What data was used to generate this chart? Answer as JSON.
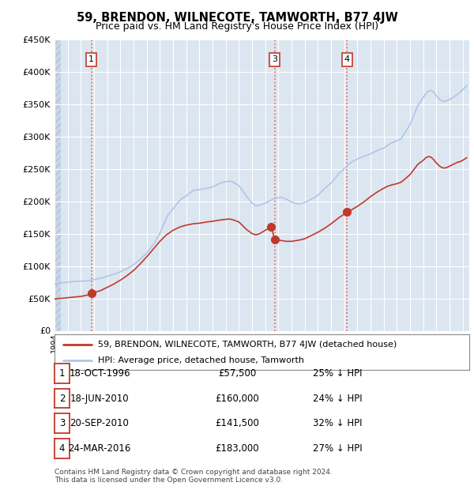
{
  "title": "59, BRENDON, WILNECOTE, TAMWORTH, B77 4JW",
  "subtitle": "Price paid vs. HM Land Registry's House Price Index (HPI)",
  "ylim": [
    0,
    450000
  ],
  "yticks": [
    0,
    50000,
    100000,
    150000,
    200000,
    250000,
    300000,
    350000,
    400000,
    450000
  ],
  "ytick_labels": [
    "£0",
    "£50K",
    "£100K",
    "£150K",
    "£200K",
    "£250K",
    "£300K",
    "£350K",
    "£400K",
    "£450K"
  ],
  "xlim_start": 1994.0,
  "xlim_end": 2025.5,
  "background_color": "#ffffff",
  "plot_bg_color": "#dce6f1",
  "hatch_color": "#c8d8ea",
  "grid_color": "#ffffff",
  "hpi_line_color": "#aec6e8",
  "property_line_color": "#c0392b",
  "sale_dot_color": "#c0392b",
  "sale_marker_size": 7,
  "vline_color": "#e86060",
  "legend_label_property": "59, BRENDON, WILNECOTE, TAMWORTH, B77 4JW (detached house)",
  "legend_label_hpi": "HPI: Average price, detached house, Tamworth",
  "sales": [
    {
      "label": "1",
      "date_num": 1996.79,
      "price": 57500,
      "show_vline": true,
      "show_box": true
    },
    {
      "label": "2",
      "date_num": 2010.46,
      "price": 160000,
      "show_vline": false,
      "show_box": false
    },
    {
      "label": "3",
      "date_num": 2010.72,
      "price": 141500,
      "show_vline": true,
      "show_box": true
    },
    {
      "label": "4",
      "date_num": 2016.22,
      "price": 183000,
      "show_vline": true,
      "show_box": true
    }
  ],
  "hpi_points": [
    [
      1994.0,
      72000
    ],
    [
      1994.5,
      74000
    ],
    [
      1995.0,
      75000
    ],
    [
      1995.5,
      76000
    ],
    [
      1996.0,
      76500
    ],
    [
      1996.5,
      77000
    ],
    [
      1997.0,
      79000
    ],
    [
      1997.5,
      81000
    ],
    [
      1998.0,
      84000
    ],
    [
      1998.5,
      87000
    ],
    [
      1999.0,
      91000
    ],
    [
      1999.5,
      96000
    ],
    [
      2000.0,
      102000
    ],
    [
      2000.5,
      110000
    ],
    [
      2001.0,
      120000
    ],
    [
      2001.5,
      133000
    ],
    [
      2002.0,
      150000
    ],
    [
      2002.3,
      165000
    ],
    [
      2002.6,
      178000
    ],
    [
      2003.0,
      188000
    ],
    [
      2003.3,
      196000
    ],
    [
      2003.6,
      203000
    ],
    [
      2004.0,
      208000
    ],
    [
      2004.3,
      213000
    ],
    [
      2004.6,
      217000
    ],
    [
      2005.0,
      218000
    ],
    [
      2005.3,
      219000
    ],
    [
      2005.6,
      220000
    ],
    [
      2006.0,
      222000
    ],
    [
      2006.3,
      225000
    ],
    [
      2006.6,
      228000
    ],
    [
      2007.0,
      230000
    ],
    [
      2007.3,
      231000
    ],
    [
      2007.6,
      229000
    ],
    [
      2008.0,
      224000
    ],
    [
      2008.3,
      216000
    ],
    [
      2008.6,
      207000
    ],
    [
      2009.0,
      197000
    ],
    [
      2009.3,
      193000
    ],
    [
      2009.6,
      194000
    ],
    [
      2010.0,
      197000
    ],
    [
      2010.3,
      200000
    ],
    [
      2010.6,
      203000
    ],
    [
      2010.9,
      205000
    ],
    [
      2011.2,
      206000
    ],
    [
      2011.5,
      204000
    ],
    [
      2011.8,
      201000
    ],
    [
      2012.1,
      198000
    ],
    [
      2012.4,
      196000
    ],
    [
      2012.7,
      196000
    ],
    [
      2013.0,
      198000
    ],
    [
      2013.3,
      201000
    ],
    [
      2013.6,
      204000
    ],
    [
      2014.0,
      209000
    ],
    [
      2014.3,
      215000
    ],
    [
      2014.6,
      221000
    ],
    [
      2015.0,
      228000
    ],
    [
      2015.3,
      235000
    ],
    [
      2015.6,
      243000
    ],
    [
      2016.0,
      250000
    ],
    [
      2016.3,
      256000
    ],
    [
      2016.6,
      261000
    ],
    [
      2017.0,
      265000
    ],
    [
      2017.3,
      268000
    ],
    [
      2017.6,
      270000
    ],
    [
      2018.0,
      273000
    ],
    [
      2018.3,
      276000
    ],
    [
      2018.6,
      279000
    ],
    [
      2019.0,
      282000
    ],
    [
      2019.3,
      286000
    ],
    [
      2019.6,
      290000
    ],
    [
      2020.0,
      293000
    ],
    [
      2020.3,
      296000
    ],
    [
      2020.6,
      305000
    ],
    [
      2021.0,
      318000
    ],
    [
      2021.3,
      333000
    ],
    [
      2021.6,
      348000
    ],
    [
      2022.0,
      360000
    ],
    [
      2022.2,
      366000
    ],
    [
      2022.4,
      370000
    ],
    [
      2022.6,
      371000
    ],
    [
      2022.8,
      368000
    ],
    [
      2023.0,
      363000
    ],
    [
      2023.2,
      358000
    ],
    [
      2023.4,
      355000
    ],
    [
      2023.6,
      354000
    ],
    [
      2023.8,
      355000
    ],
    [
      2024.0,
      357000
    ],
    [
      2024.2,
      359000
    ],
    [
      2024.4,
      362000
    ],
    [
      2024.6,
      365000
    ],
    [
      2024.8,
      368000
    ],
    [
      2025.0,
      372000
    ],
    [
      2025.3,
      378000
    ]
  ],
  "prop_points": [
    [
      1994.0,
      49000
    ],
    [
      1994.5,
      50000
    ],
    [
      1995.0,
      51000
    ],
    [
      1995.5,
      52000
    ],
    [
      1996.0,
      53000
    ],
    [
      1996.5,
      55000
    ],
    [
      1996.79,
      57500
    ],
    [
      1997.0,
      59000
    ],
    [
      1997.5,
      62000
    ],
    [
      1998.0,
      67000
    ],
    [
      1998.5,
      72000
    ],
    [
      1999.0,
      78000
    ],
    [
      1999.5,
      85000
    ],
    [
      2000.0,
      93000
    ],
    [
      2000.5,
      103000
    ],
    [
      2001.0,
      114000
    ],
    [
      2001.5,
      126000
    ],
    [
      2002.0,
      138000
    ],
    [
      2002.5,
      148000
    ],
    [
      2003.0,
      155000
    ],
    [
      2003.5,
      160000
    ],
    [
      2004.0,
      163000
    ],
    [
      2004.5,
      165000
    ],
    [
      2005.0,
      166000
    ],
    [
      2005.3,
      167000
    ],
    [
      2005.6,
      168000
    ],
    [
      2006.0,
      169000
    ],
    [
      2006.3,
      170000
    ],
    [
      2006.6,
      171000
    ],
    [
      2007.0,
      172000
    ],
    [
      2007.3,
      172500
    ],
    [
      2007.6,
      171000
    ],
    [
      2008.0,
      168000
    ],
    [
      2008.3,
      162000
    ],
    [
      2008.6,
      156000
    ],
    [
      2009.0,
      150000
    ],
    [
      2009.3,
      148000
    ],
    [
      2009.6,
      150000
    ],
    [
      2010.0,
      155000
    ],
    [
      2010.46,
      160000
    ],
    [
      2010.72,
      141500
    ],
    [
      2011.0,
      140000
    ],
    [
      2011.3,
      139000
    ],
    [
      2011.6,
      138000
    ],
    [
      2012.0,
      138000
    ],
    [
      2012.3,
      139000
    ],
    [
      2012.6,
      140000
    ],
    [
      2013.0,
      142000
    ],
    [
      2013.3,
      145000
    ],
    [
      2013.6,
      148000
    ],
    [
      2014.0,
      152000
    ],
    [
      2014.5,
      158000
    ],
    [
      2015.0,
      165000
    ],
    [
      2015.5,
      173000
    ],
    [
      2016.0,
      180000
    ],
    [
      2016.22,
      183000
    ],
    [
      2016.5,
      186000
    ],
    [
      2017.0,
      192000
    ],
    [
      2017.5,
      199000
    ],
    [
      2018.0,
      207000
    ],
    [
      2018.5,
      214000
    ],
    [
      2019.0,
      220000
    ],
    [
      2019.3,
      223000
    ],
    [
      2019.6,
      225000
    ],
    [
      2020.0,
      227000
    ],
    [
      2020.3,
      229000
    ],
    [
      2020.6,
      234000
    ],
    [
      2021.0,
      241000
    ],
    [
      2021.3,
      249000
    ],
    [
      2021.6,
      257000
    ],
    [
      2022.0,
      263000
    ],
    [
      2022.2,
      267000
    ],
    [
      2022.4,
      269000
    ],
    [
      2022.6,
      268000
    ],
    [
      2022.8,
      264000
    ],
    [
      2023.0,
      259000
    ],
    [
      2023.2,
      255000
    ],
    [
      2023.4,
      252000
    ],
    [
      2023.6,
      251000
    ],
    [
      2023.8,
      252000
    ],
    [
      2024.0,
      254000
    ],
    [
      2024.2,
      256000
    ],
    [
      2024.4,
      258000
    ],
    [
      2024.6,
      260000
    ],
    [
      2024.8,
      261000
    ],
    [
      2025.0,
      263000
    ],
    [
      2025.3,
      267000
    ]
  ],
  "table_rows": [
    {
      "num": "1",
      "date": "18-OCT-1996",
      "price": "£57,500",
      "hpi_diff": "25% ↓ HPI"
    },
    {
      "num": "2",
      "date": "18-JUN-2010",
      "price": "£160,000",
      "hpi_diff": "24% ↓ HPI"
    },
    {
      "num": "3",
      "date": "20-SEP-2010",
      "price": "£141,500",
      "hpi_diff": "32% ↓ HPI"
    },
    {
      "num": "4",
      "date": "24-MAR-2016",
      "price": "£183,000",
      "hpi_diff": "27% ↓ HPI"
    }
  ],
  "footnote": "Contains HM Land Registry data © Crown copyright and database right 2024.\nThis data is licensed under the Open Government Licence v3.0."
}
